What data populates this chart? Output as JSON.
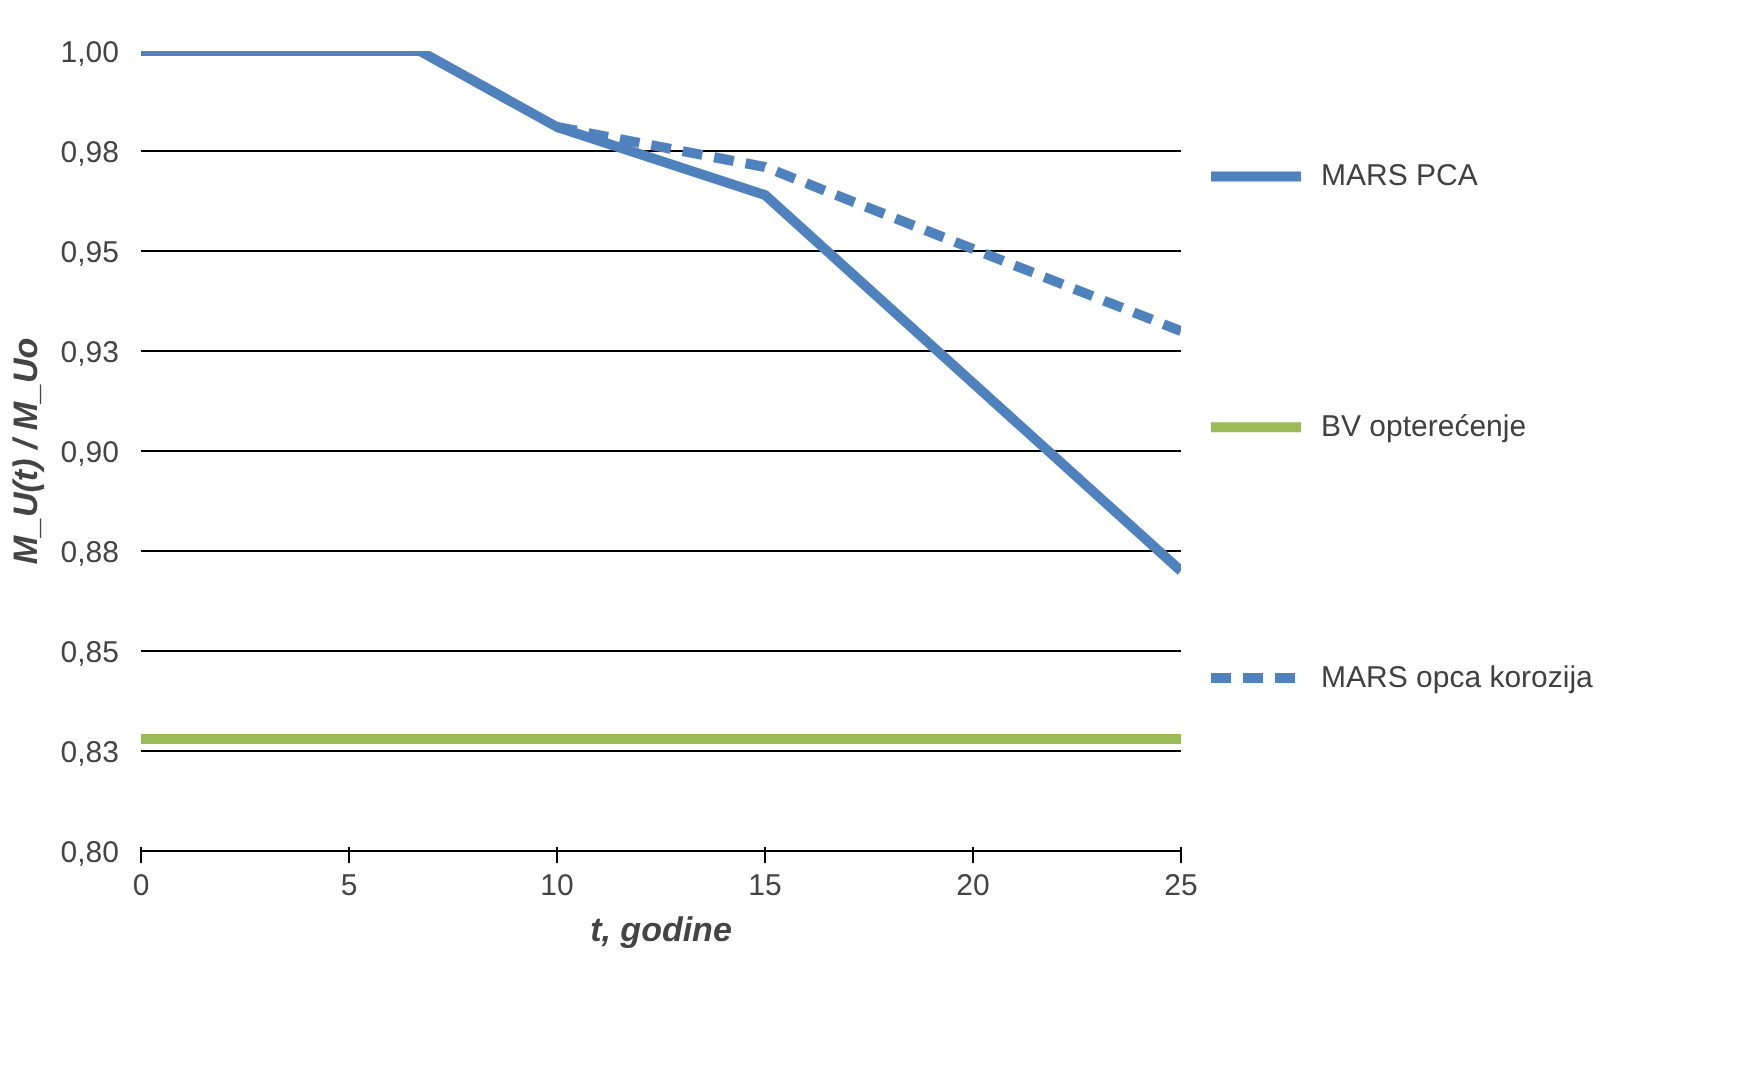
{
  "chart_data": {
    "type": "line",
    "xlabel": "t, godine",
    "ylabel": "M_U(t) / M_Uo",
    "xlim": [
      0,
      25
    ],
    "xticks": [
      0,
      5,
      10,
      15,
      20,
      25
    ],
    "ylim": [
      0.8,
      1.0
    ],
    "yticks": [
      {
        "value": 0.8,
        "label": "0,80"
      },
      {
        "value": 0.825,
        "label": "0,83"
      },
      {
        "value": 0.85,
        "label": "0,85"
      },
      {
        "value": 0.875,
        "label": "0,88"
      },
      {
        "value": 0.9,
        "label": "0,90"
      },
      {
        "value": 0.925,
        "label": "0,93"
      },
      {
        "value": 0.95,
        "label": "0,95"
      },
      {
        "value": 0.975,
        "label": "0,98"
      },
      {
        "value": 1.0,
        "label": "1,00"
      }
    ],
    "grid": "y",
    "legend": "right",
    "marker": "none",
    "series": [
      {
        "name": "MARS PCA",
        "color": "#4f81bd",
        "line_style": "solid",
        "x": [
          0,
          6.7,
          10,
          15,
          25
        ],
        "values": [
          1.0,
          1.0,
          0.981,
          0.964,
          0.87
        ]
      },
      {
        "name": "BV opterećenje",
        "color": "#9bbb59",
        "line_style": "solid",
        "x": [
          0,
          25
        ],
        "values": [
          0.828,
          0.828
        ]
      },
      {
        "name": "MARS opca korozija",
        "color": "#4f81bd",
        "line_style": "dashed",
        "x": [
          10,
          15,
          25
        ],
        "values": [
          0.981,
          0.971,
          0.93
        ]
      }
    ]
  }
}
